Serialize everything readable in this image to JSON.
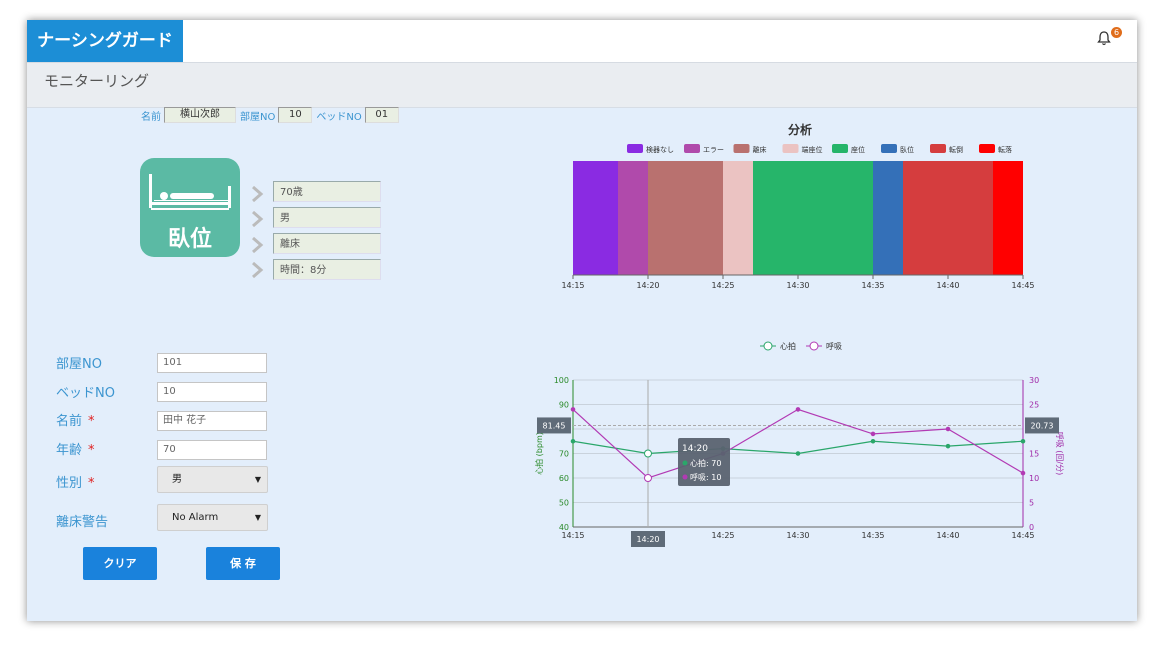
{
  "app": {
    "logo": "ナーシングガード",
    "notification_count": "6",
    "page_title": "モニターリング"
  },
  "patient_info": {
    "name_label": "名前",
    "name_value": "横山次郎",
    "room_label": "部屋NO",
    "room_value": "10",
    "bed_label": "ベッドNO",
    "bed_value": "01"
  },
  "posture": {
    "label": "臥位",
    "details": [
      "70歳",
      "男",
      "離床",
      "時間：8分"
    ]
  },
  "form": {
    "room_label": "部屋NO",
    "room_value": "101",
    "bed_label": "ベッドNO",
    "bed_value": "10",
    "name_label": "名前",
    "name_value": "田中 花子",
    "age_label": "年齢",
    "age_value": "70",
    "gender_label": "性別",
    "gender_value": "男",
    "alarm_label": "離床警告",
    "alarm_value": "No Alarm",
    "required_mark": "*",
    "clear_button": "クリア",
    "save_button": "保 存"
  },
  "chart_data": [
    {
      "type": "timeline",
      "title": "分析",
      "legend": [
        {
          "name": "検器なし",
          "color": "#8a2be2"
        },
        {
          "name": "エラー",
          "color": "#b04aab"
        },
        {
          "name": "離床",
          "color": "#b9716f"
        },
        {
          "name": "端座位",
          "color": "#ebc3c2"
        },
        {
          "name": "座位",
          "color": "#26b56a"
        },
        {
          "name": "臥位",
          "color": "#3470b8"
        },
        {
          "name": "転倒",
          "color": "#d53d3e"
        },
        {
          "name": "転落",
          "color": "#ff0000"
        }
      ],
      "x_ticks": [
        "14:15",
        "14:20",
        "14:25",
        "14:30",
        "14:35",
        "14:40",
        "14:45"
      ],
      "xlim_minutes": [
        0,
        30
      ],
      "segments": [
        {
          "state": "検器なし",
          "start": "14:15",
          "end": "14:18",
          "color": "#8a2be2"
        },
        {
          "state": "エラー",
          "start": "14:18",
          "end": "14:20",
          "color": "#b04aab"
        },
        {
          "state": "離床",
          "start": "14:20",
          "end": "14:25",
          "color": "#b9716f"
        },
        {
          "state": "端座位",
          "start": "14:25",
          "end": "14:27",
          "color": "#ebc3c2"
        },
        {
          "state": "座位",
          "start": "14:27",
          "end": "14:35",
          "color": "#26b56a"
        },
        {
          "state": "臥位",
          "start": "14:35",
          "end": "14:37",
          "color": "#3470b8"
        },
        {
          "state": "転倒",
          "start": "14:37",
          "end": "14:43",
          "color": "#d53d3e"
        },
        {
          "state": "転落",
          "start": "14:43",
          "end": "14:45",
          "color": "#ff0000"
        }
      ]
    },
    {
      "type": "line",
      "categories": [
        "14:15",
        "14:20",
        "14:25",
        "14:30",
        "14:35",
        "14:40",
        "14:45"
      ],
      "ylabel_left": "心拍 (bpm)",
      "ylabel_right": "呼吸 (回/分)",
      "ylim_left": [
        40,
        100
      ],
      "yticks_left": [
        40,
        50,
        60,
        70,
        80,
        90,
        100
      ],
      "ylim_right": [
        0,
        30
      ],
      "yticks_right": [
        0,
        5,
        10,
        15,
        20,
        25,
        30
      ],
      "series": [
        {
          "name": "心拍",
          "axis": "left",
          "color": "#2aa66a",
          "values": [
            75,
            70,
            72,
            70,
            75,
            73,
            75
          ]
        },
        {
          "name": "呼吸",
          "axis": "right",
          "color": "#b23ab4",
          "values": [
            24,
            10,
            15,
            24,
            19,
            20,
            11
          ]
        }
      ],
      "crosshair": {
        "x_label": "14:20",
        "left_value_label": "81.45",
        "right_value_label": "20.73"
      },
      "tooltip": {
        "title": "14:20",
        "lines": [
          "心拍: 70",
          "呼吸: 10"
        ]
      }
    }
  ]
}
